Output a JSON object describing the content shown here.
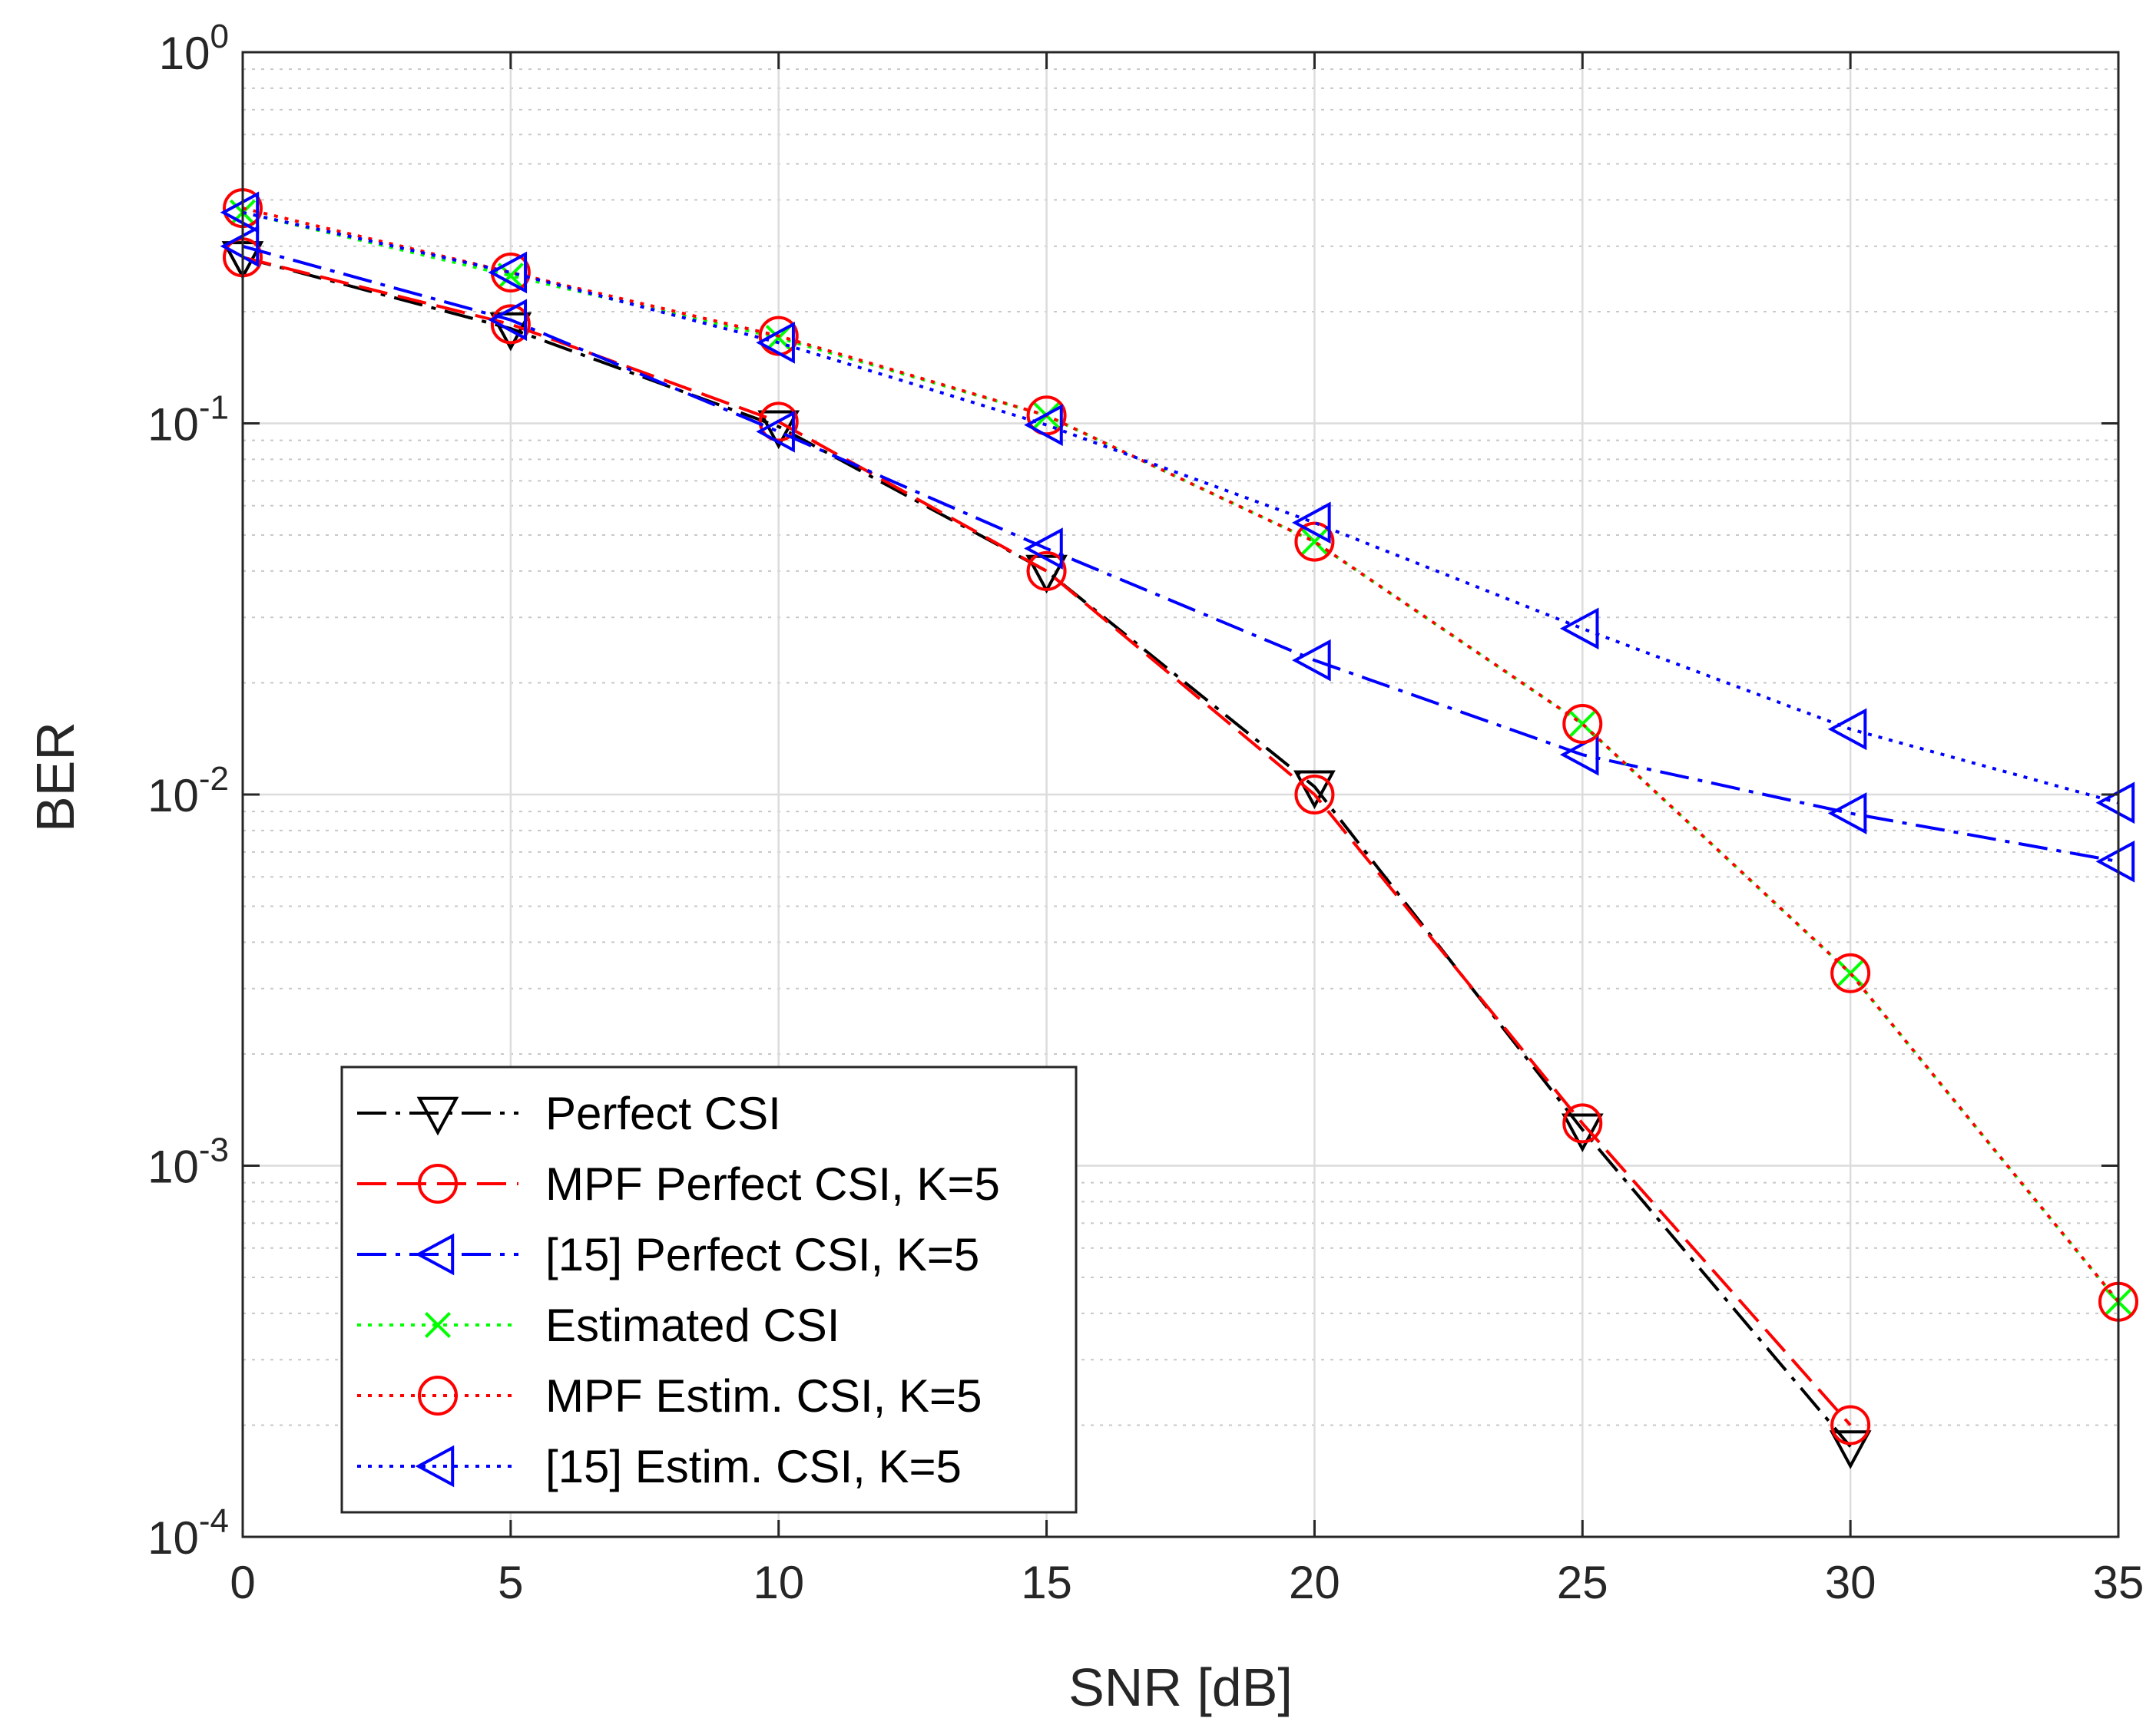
{
  "chart_data": {
    "type": "line",
    "xlabel": "SNR [dB]",
    "ylabel": "BER",
    "xlim": [
      0,
      35
    ],
    "ylim": [
      0.0001,
      1
    ],
    "yscale": "log",
    "grid": true,
    "minor_grid": true,
    "legend_position": "bottom-left",
    "x_ticks": [
      {
        "value": 0,
        "label": "0"
      },
      {
        "value": 5,
        "label": "5"
      },
      {
        "value": 10,
        "label": "10"
      },
      {
        "value": 15,
        "label": "15"
      },
      {
        "value": 20,
        "label": "20"
      },
      {
        "value": 25,
        "label": "25"
      },
      {
        "value": 30,
        "label": "30"
      },
      {
        "value": 35,
        "label": "35"
      }
    ],
    "y_ticks": [
      {
        "value": 1,
        "base": "10",
        "exponent": "0"
      },
      {
        "value": 0.1,
        "base": "10",
        "exponent": "-1"
      },
      {
        "value": 0.01,
        "base": "10",
        "exponent": "-2"
      },
      {
        "value": 0.001,
        "base": "10",
        "exponent": "-3"
      },
      {
        "value": 0.0001,
        "base": "10",
        "exponent": "-4"
      }
    ],
    "series": [
      {
        "name": "Perfect CSI",
        "color": "#000000",
        "line_style": "dash-dot",
        "marker": "triangle-down",
        "x": [
          0,
          5,
          10,
          15,
          20,
          25,
          30
        ],
        "y": [
          0.28,
          0.18,
          0.098,
          0.04,
          0.0105,
          0.00125,
          0.000175
        ]
      },
      {
        "name": "MPF Perfect CSI, K=5",
        "color": "#ff0000",
        "line_style": "dashed",
        "marker": "circle",
        "x": [
          0,
          5,
          10,
          15,
          20,
          25,
          30
        ],
        "y": [
          0.28,
          0.185,
          0.101,
          0.04,
          0.01,
          0.0013,
          0.0002
        ]
      },
      {
        "name": "[15] Perfect CSI, K=5",
        "color": "#0000ff",
        "line_style": "dash-dot",
        "marker": "triangle-left",
        "x": [
          0,
          5,
          10,
          15,
          20,
          25,
          30,
          35
        ],
        "y": [
          0.3,
          0.19,
          0.095,
          0.046,
          0.023,
          0.0128,
          0.0089,
          0.0066
        ]
      },
      {
        "name": "Estimated CSI",
        "color": "#00ff00",
        "line_style": "dotted",
        "marker": "x",
        "x": [
          0,
          5,
          10,
          15,
          20,
          25,
          30,
          35
        ],
        "y": [
          0.37,
          0.25,
          0.17,
          0.105,
          0.048,
          0.0155,
          0.0033,
          0.00043
        ]
      },
      {
        "name": "MPF Estim. CSI, K=5",
        "color": "#ff0000",
        "line_style": "dotted",
        "marker": "circle",
        "x": [
          0,
          5,
          10,
          15,
          20,
          25,
          30,
          35
        ],
        "y": [
          0.38,
          0.255,
          0.172,
          0.105,
          0.048,
          0.0155,
          0.0033,
          0.00043
        ]
      },
      {
        "name": "[15] Estim. CSI, K=5",
        "color": "#0000ff",
        "line_style": "dotted",
        "marker": "triangle-left",
        "x": [
          0,
          5,
          10,
          15,
          20,
          25,
          30,
          35
        ],
        "y": [
          0.37,
          0.255,
          0.165,
          0.099,
          0.054,
          0.028,
          0.015,
          0.0095
        ]
      }
    ]
  }
}
